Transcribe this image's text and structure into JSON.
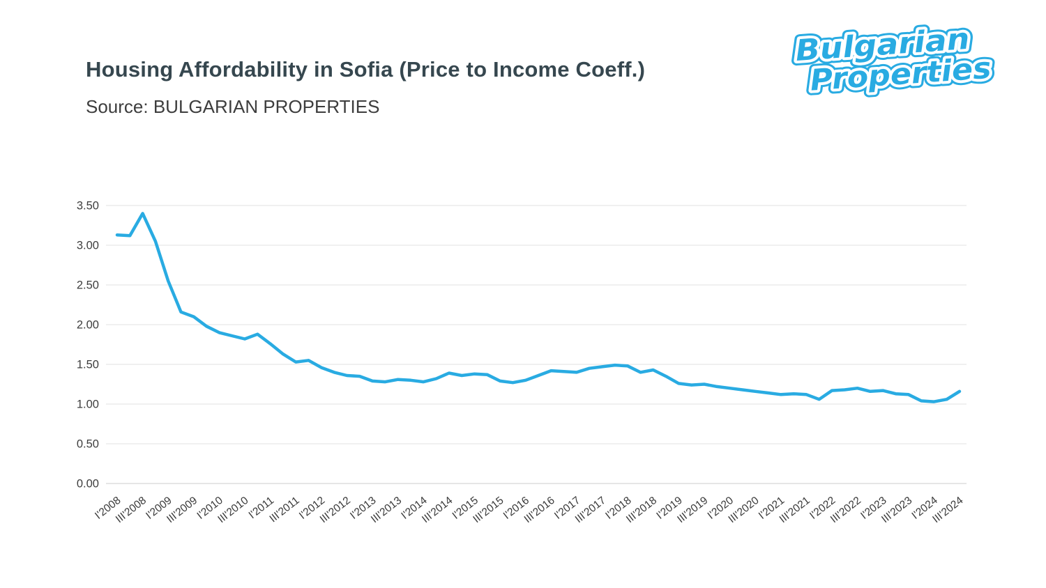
{
  "chart_data": {
    "type": "line",
    "title": "Housing Affordability in Sofia (Price to Income Coeff.)",
    "source": "Source: BULGARIAN PROPERTIES",
    "series": [
      {
        "name": "Price to Income Coefficient",
        "values": [
          3.13,
          3.12,
          3.4,
          3.05,
          2.55,
          2.16,
          2.1,
          1.98,
          1.9,
          1.86,
          1.82,
          1.88,
          1.76,
          1.63,
          1.53,
          1.55,
          1.46,
          1.4,
          1.36,
          1.35,
          1.29,
          1.28,
          1.31,
          1.3,
          1.28,
          1.32,
          1.39,
          1.36,
          1.38,
          1.37,
          1.29,
          1.27,
          1.3,
          1.36,
          1.42,
          1.41,
          1.4,
          1.45,
          1.47,
          1.49,
          1.48,
          1.4,
          1.43,
          1.35,
          1.26,
          1.24,
          1.25,
          1.22,
          1.2,
          1.18,
          1.16,
          1.14,
          1.12,
          1.13,
          1.12,
          1.06,
          1.17,
          1.18,
          1.2,
          1.16,
          1.17,
          1.13,
          1.12,
          1.04,
          1.03,
          1.06,
          1.16
        ]
      }
    ],
    "x_tick_labels": [
      "I'2008",
      "III'2008",
      "I'2009",
      "III'2009",
      "I'2010",
      "III'2010",
      "I'2011",
      "III'2011",
      "I'2012",
      "III'2012",
      "I'2013",
      "III'2013",
      "I'2014",
      "III'2014",
      "I'2015",
      "III'2015",
      "I'2016",
      "III'2016",
      "I'2017",
      "III'2017",
      "I'2018",
      "III'2018",
      "I'2019",
      "III'2019",
      "I'2020",
      "III'2020",
      "I'2021",
      "III'2021",
      "I'2022",
      "III'2022",
      "I'2023",
      "III'2023",
      "I'2024",
      "III'2024"
    ],
    "points_per_tick": 2,
    "y_tick_labels": [
      "0.00",
      "0.50",
      "1.00",
      "1.50",
      "2.00",
      "2.50",
      "3.00",
      "3.50"
    ],
    "ylim": [
      0,
      3.5
    ],
    "grid": true,
    "legend": "none",
    "line_color": "#29abe2"
  },
  "logo": {
    "line1": "Bulgarian",
    "line2": "Properties",
    "color": "#29abe2"
  }
}
